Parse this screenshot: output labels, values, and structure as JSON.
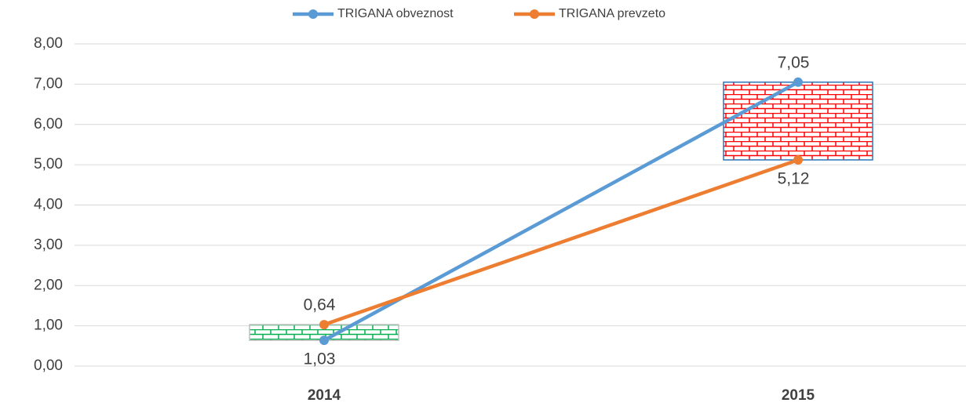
{
  "chart_data": {
    "type": "line",
    "categories": [
      "2014",
      "2015"
    ],
    "series": [
      {
        "name": "TRIGANA obveznost",
        "color": "#5b9bd5",
        "values": [
          0.64,
          7.05
        ],
        "value_labels": [
          "0,64",
          "7,05"
        ]
      },
      {
        "name": "TRIGANA prevzeto",
        "color": "#ed7d31",
        "values": [
          1.03,
          5.12
        ],
        "value_labels": [
          "1,03",
          "5,12"
        ]
      }
    ],
    "ylim": [
      0,
      8
    ],
    "yticks": [
      {
        "value": 0,
        "label": "0,00"
      },
      {
        "value": 1,
        "label": "1,00"
      },
      {
        "value": 2,
        "label": "2,00"
      },
      {
        "value": 3,
        "label": "3,00"
      },
      {
        "value": 4,
        "label": "4,00"
      },
      {
        "value": 5,
        "label": "5,00"
      },
      {
        "value": 6,
        "label": "6,00"
      },
      {
        "value": 7,
        "label": "7,00"
      },
      {
        "value": 8,
        "label": "8,00"
      }
    ],
    "grid": true,
    "legend": "top",
    "up_bar_color": "#00b050",
    "down_bar_color": "#ff0000"
  }
}
